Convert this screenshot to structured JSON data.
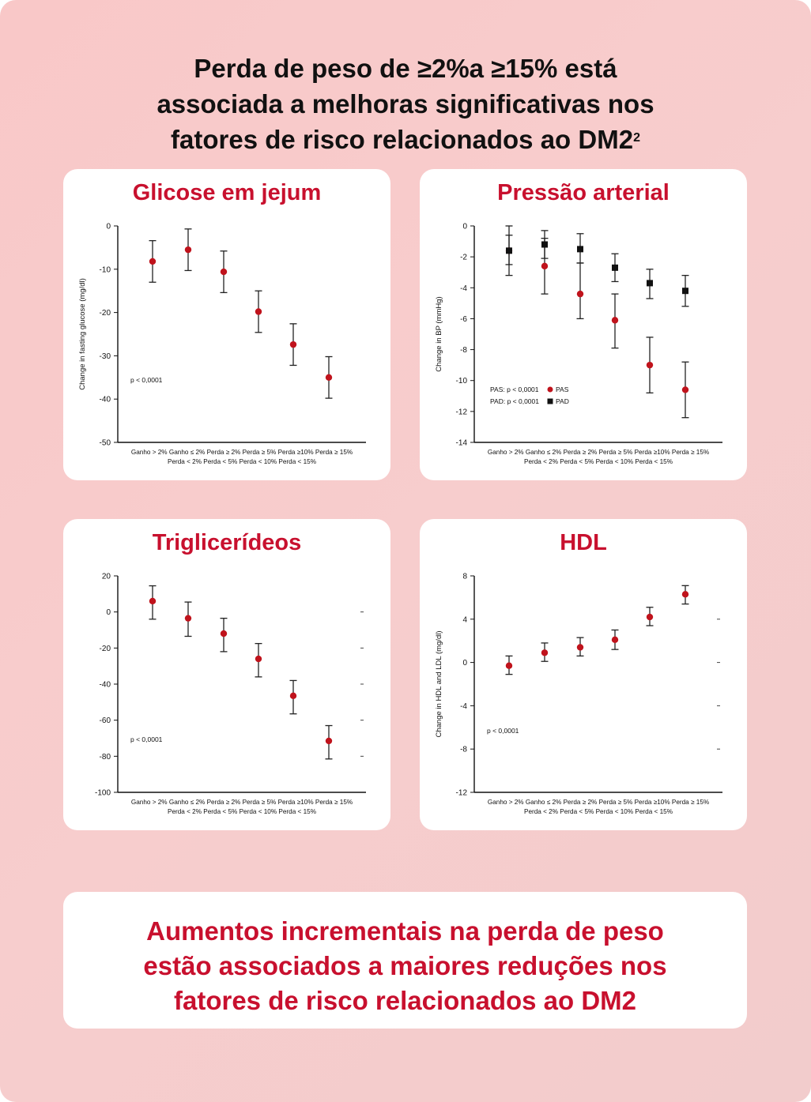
{
  "headline": {
    "line1": "Perda de peso de ≥2%a ≥15% está",
    "line2": "associada a melhoras significativas nos",
    "line3": "fatores de risco relacionados ao DM2",
    "superscript": "2"
  },
  "footer": {
    "line1": "Aumentos incrementais na perda de peso",
    "line2": "estão associados a maiores reduções nos",
    "line3": "fatores de risco relacionados ao DM2"
  },
  "colors": {
    "accent": "#c8102e",
    "series_red": "#c0131c",
    "series_black": "#111111"
  },
  "chart_data": [
    {
      "type": "scatter",
      "title": "Glicose em jejum",
      "ylabel": "Change in fasting glucose (mg/dl)",
      "ylim": [
        -50,
        0
      ],
      "yticks": [
        "0",
        "-10",
        "-20",
        "-30",
        "-40",
        "-50"
      ],
      "x_top_labels": "Ganho > 2% Ganho ≤ 2% Perda ≥ 2% Perda ≥ 5% Perda ≥10% Perda ≥ 15%",
      "x_bottom_labels": "Perda < 2% Perda < 5% Perda < 10% Perda < 15%",
      "annotation": "p < 0,0001",
      "series": [
        {
          "values": [
            -8.2,
            -5.5,
            -10.6,
            -19.8,
            -27.4,
            -35.0
          ],
          "lower": [
            -13,
            -10.3,
            -15.4,
            -24.6,
            -32.2,
            -39.8
          ],
          "upper": [
            -3.4,
            -0.7,
            -5.8,
            -15.0,
            -22.6,
            -30.2
          ]
        }
      ]
    },
    {
      "type": "scatter",
      "title": "Pressão arterial",
      "ylabel": "Change in BP (mmHg)",
      "ylim": [
        -14,
        0
      ],
      "yticks": [
        "0",
        "-2",
        "-4",
        "-6",
        "-8",
        "-10",
        "-12",
        "-14"
      ],
      "x_top_labels": "Ganho > 2% Ganho ≤ 2% Perda ≥ 2% Perda ≥ 5% Perda ≥10% Perda ≥ 15%",
      "x_bottom_labels": "Perda < 2% Perda < 5% Perda < 10% Perda < 15%",
      "legend": [
        {
          "label": "PAS: p < 0,0001",
          "name": "PAS"
        },
        {
          "label": "PAD: p < 0,0001",
          "name": "PAD"
        }
      ],
      "series": [
        {
          "name": "PAS",
          "marker": "circle",
          "values": [
            -1.6,
            -2.6,
            -4.4,
            -6.1,
            -9.0,
            -10.6
          ],
          "lower": [
            -3.2,
            -4.4,
            -6.0,
            -7.9,
            -10.8,
            -12.4
          ],
          "upper": [
            -0.6,
            -0.8,
            -2.4,
            -4.4,
            -7.2,
            -8.8
          ]
        },
        {
          "name": "PAD",
          "marker": "square",
          "values": [
            -1.6,
            -1.2,
            -1.5,
            -2.7,
            -3.7,
            -4.2
          ],
          "lower": [
            -2.5,
            -2.1,
            -2.4,
            -3.6,
            -4.7,
            -5.2
          ],
          "upper": [
            0.0,
            -0.3,
            -0.5,
            -1.8,
            -2.8,
            -3.2
          ]
        }
      ]
    },
    {
      "type": "scatter",
      "title": "Triglicerídeos",
      "ylabel": "",
      "ylim": [
        -100,
        20
      ],
      "yticks": [
        "20",
        "0",
        "-20",
        "-40",
        "-60",
        "-80",
        "-100"
      ],
      "x_top_labels": "Ganho > 2% Ganho ≤ 2% Perda ≥ 2% Perda ≥ 5% Perda ≥10% Perda ≥ 15%",
      "x_bottom_labels": "Perda < 2% Perda < 5% Perda < 10% Perda < 15%",
      "annotation": "p < 0,0001",
      "series": [
        {
          "values": [
            6,
            -3.5,
            -12,
            -26,
            -46.5,
            -71.5
          ],
          "lower": [
            -4,
            -13.5,
            -22,
            -36,
            -56.5,
            -81.5
          ],
          "upper": [
            14.5,
            5.5,
            -3.5,
            -17.5,
            -38,
            -63
          ]
        }
      ]
    },
    {
      "type": "scatter",
      "title": "HDL",
      "ylabel": "Change in HDL and LDL (mg/dl)",
      "ylim": [
        -12,
        8
      ],
      "yticks": [
        "8",
        "4",
        "0",
        "-4",
        "-8",
        "-12"
      ],
      "x_top_labels": "Ganho > 2% Ganho ≤ 2% Perda ≥ 2% Perda ≥ 5% Perda ≥10% Perda ≥ 15%",
      "x_bottom_labels": "Perda < 2% Perda < 5% Perda < 10% Perda < 15%",
      "annotation": "p < 0,0001",
      "series": [
        {
          "values": [
            -0.3,
            0.9,
            1.4,
            2.1,
            4.2,
            6.3
          ],
          "lower": [
            -1.1,
            0.1,
            0.6,
            1.2,
            3.4,
            5.4
          ],
          "upper": [
            0.6,
            1.8,
            2.3,
            3.0,
            5.1,
            7.1
          ]
        }
      ]
    }
  ]
}
